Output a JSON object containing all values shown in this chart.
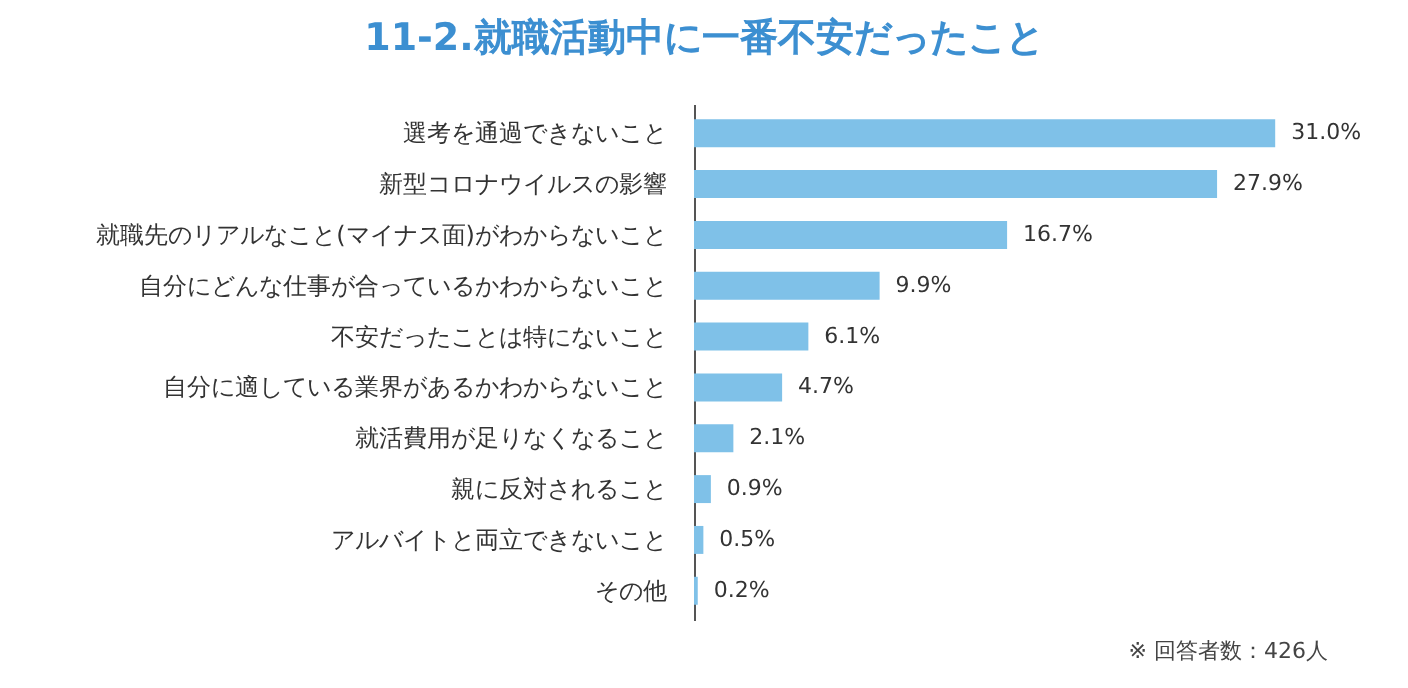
{
  "chart_data": {
    "type": "bar",
    "orientation": "horizontal",
    "title": "11-2.就職活動中に一番不安だったこと",
    "categories": [
      "選考を通過できないこと",
      "新型コロナウイルスの影響",
      "就職先のリアルなこと(マイナス面)がわからないこと",
      "自分にどんな仕事が合っているかわからないこと",
      "不安だったことは特にないこと",
      "自分に適している業界があるかわからないこと",
      "就活費用が足りなくなること",
      "親に反対されること",
      "アルバイトと両立できないこと",
      "その他"
    ],
    "values": [
      31.0,
      27.9,
      16.7,
      9.9,
      6.1,
      4.7,
      2.1,
      0.9,
      0.5,
      0.2
    ],
    "value_labels": [
      "31.0%",
      "27.9%",
      "16.7%",
      "9.9%",
      "6.1%",
      "4.7%",
      "2.1%",
      "0.9%",
      "0.5%",
      "0.2%"
    ],
    "color": "#7fc1e8",
    "annotations": [
      "※ 回答者数：426人"
    ]
  }
}
